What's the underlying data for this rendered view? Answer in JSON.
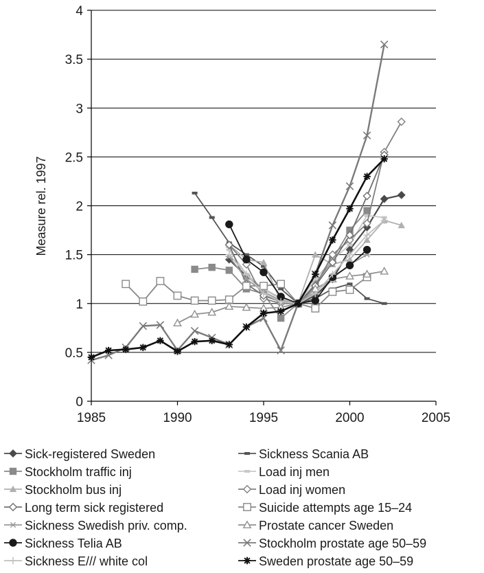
{
  "chart_data": {
    "type": "line",
    "title": "",
    "xlabel": "",
    "ylabel": "Measure rel. 1997",
    "xlim": [
      1985,
      2005
    ],
    "ylim": [
      0,
      4
    ],
    "xticks": [
      1985,
      1990,
      1995,
      2000,
      2005
    ],
    "yticks": [
      0,
      0.5,
      1,
      1.5,
      2,
      2.5,
      3,
      3.5,
      4
    ],
    "ytick_labels": [
      "0",
      "0.5",
      "1",
      "1.5",
      "2",
      "2.5",
      "3",
      "3.5",
      "4"
    ],
    "grid": "horizontal",
    "legend_position": "bottom",
    "series": [
      {
        "name": "Sick-registered Sweden",
        "color": "#4a4a4a",
        "marker": "diamond-filled",
        "x": [
          1993,
          1994,
          1995,
          1996,
          1997,
          1998,
          1999,
          2000,
          2001,
          2002,
          2003
        ],
        "y": [
          1.45,
          1.28,
          1.15,
          1.05,
          1.0,
          1.08,
          1.25,
          1.55,
          1.78,
          2.07,
          2.11
        ]
      },
      {
        "name": "Sickness Scania AB",
        "color": "#555555",
        "marker": "dash",
        "x": [
          1991,
          1992,
          1993,
          1994,
          1995,
          1996,
          1997,
          1998,
          1999,
          2000,
          2001,
          2002
        ],
        "y": [
          2.13,
          1.88,
          1.62,
          1.5,
          1.38,
          1.15,
          1.0,
          1.05,
          1.15,
          1.2,
          1.05,
          1.0
        ]
      },
      {
        "name": "Stockholm traffic inj",
        "color": "#8a8a8a",
        "marker": "square-filled",
        "x": [
          1991,
          1992,
          1993,
          1994,
          1995,
          1996,
          1997,
          1998,
          1999,
          2000,
          2001
        ],
        "y": [
          1.35,
          1.37,
          1.34,
          1.15,
          1.1,
          0.85,
          1.0,
          1.2,
          1.45,
          1.75,
          1.95
        ]
      },
      {
        "name": "Load inj men",
        "color": "#c8c8c8",
        "marker": "dash",
        "x": [
          1993,
          1994,
          1995,
          1996,
          1997,
          1998,
          1999,
          2000,
          2001,
          2002
        ],
        "y": [
          1.55,
          1.3,
          1.15,
          1.05,
          1.0,
          1.25,
          1.45,
          1.6,
          1.9,
          1.88
        ]
      },
      {
        "name": "Stockholm bus inj",
        "color": "#b0b0b0",
        "marker": "triangle-filled",
        "x": [
          1993,
          1994,
          1995,
          1996,
          1997,
          1998,
          1999,
          2000,
          2001,
          2002,
          2003
        ],
        "y": [
          1.6,
          1.45,
          1.42,
          1.02,
          1.0,
          1.5,
          1.4,
          1.45,
          1.65,
          1.85,
          1.8
        ]
      },
      {
        "name": "Load inj women",
        "color": "#808080",
        "marker": "diamond-open",
        "x": [
          1993,
          1994,
          1995,
          1996,
          1997,
          1998,
          1999,
          2000,
          2001,
          2002,
          2003
        ],
        "y": [
          1.6,
          1.4,
          1.05,
          1.0,
          1.0,
          1.18,
          1.5,
          1.65,
          1.82,
          2.55,
          2.86
        ]
      },
      {
        "name": "Long term sick registered",
        "color": "#707070",
        "marker": "diamond-open",
        "x": [
          1993,
          1994,
          1995,
          1996,
          1997,
          1998,
          1999,
          2000,
          2001,
          2002
        ],
        "y": [
          1.6,
          1.2,
          1.08,
          1.02,
          1.0,
          1.18,
          1.42,
          1.7,
          2.1,
          2.52
        ]
      },
      {
        "name": "Suicide attempts age 15–24",
        "color": "#888888",
        "marker": "square-open",
        "x": [
          1987,
          1988,
          1989,
          1990,
          1991,
          1992,
          1993,
          1994,
          1995,
          1996,
          1997,
          1998,
          1999,
          2000,
          2001
        ],
        "y": [
          1.2,
          1.02,
          1.23,
          1.08,
          1.03,
          1.03,
          1.04,
          1.18,
          1.18,
          1.2,
          1.0,
          0.95,
          1.12,
          1.14,
          1.27
        ]
      },
      {
        "name": "Sickness Swedish priv. comp.",
        "color": "#9a9a9a",
        "marker": "asterisk",
        "x": [
          1993,
          1994,
          1995,
          1996,
          1997,
          1998,
          1999,
          2000,
          2001
        ],
        "y": [
          1.48,
          1.25,
          1.12,
          1.03,
          1.0,
          1.12,
          1.26,
          1.4,
          1.5
        ]
      },
      {
        "name": "Prostate cancer Sweden",
        "color": "#909090",
        "marker": "triangle-open",
        "x": [
          1990,
          1991,
          1992,
          1993,
          1994,
          1995,
          1996,
          1997,
          1998,
          1999,
          2000,
          2001,
          2002
        ],
        "y": [
          0.8,
          0.89,
          0.91,
          0.97,
          0.96,
          0.95,
          0.96,
          1.0,
          1.15,
          1.25,
          1.28,
          1.3,
          1.33
        ]
      },
      {
        "name": "Sickness Telia AB",
        "color": "#1a1a1a",
        "marker": "circle-filled",
        "x": [
          1993,
          1994,
          1995,
          1996,
          1997,
          1998,
          1999,
          2000,
          2001
        ],
        "y": [
          1.81,
          1.45,
          1.32,
          1.07,
          1.0,
          1.03,
          1.27,
          1.39,
          1.55
        ]
      },
      {
        "name": "Stockholm prostate age 50–59",
        "color": "#7a7a7a",
        "marker": "x",
        "x": [
          1985,
          1986,
          1987,
          1988,
          1989,
          1990,
          1991,
          1992,
          1993,
          1994,
          1995,
          1996,
          1997,
          1998,
          1999,
          2000,
          2001,
          2002
        ],
        "y": [
          0.42,
          0.47,
          0.55,
          0.77,
          0.78,
          0.52,
          0.72,
          0.65,
          0.58,
          0.76,
          0.85,
          0.52,
          1.0,
          1.3,
          1.8,
          2.2,
          2.72,
          3.65
        ]
      },
      {
        "name": "Sickness E/// white col",
        "color": "#c0c0c0",
        "marker": "plus",
        "x": [
          1993,
          1994,
          1995,
          1996,
          1997,
          1998,
          1999,
          2000,
          2001,
          2002
        ],
        "y": [
          1.5,
          1.3,
          1.1,
          1.02,
          1.0,
          1.1,
          1.3,
          1.5,
          1.7,
          1.85
        ]
      },
      {
        "name": "Sweden prostate age 50–59",
        "color": "#111111",
        "marker": "star",
        "x": [
          1985,
          1986,
          1987,
          1988,
          1989,
          1990,
          1991,
          1992,
          1993,
          1994,
          1995,
          1996,
          1997,
          1998,
          1999,
          2000,
          2001,
          2002
        ],
        "y": [
          0.45,
          0.52,
          0.53,
          0.55,
          0.62,
          0.51,
          0.61,
          0.62,
          0.58,
          0.76,
          0.9,
          0.92,
          1.0,
          1.3,
          1.65,
          1.97,
          2.3,
          2.48
        ]
      }
    ]
  }
}
